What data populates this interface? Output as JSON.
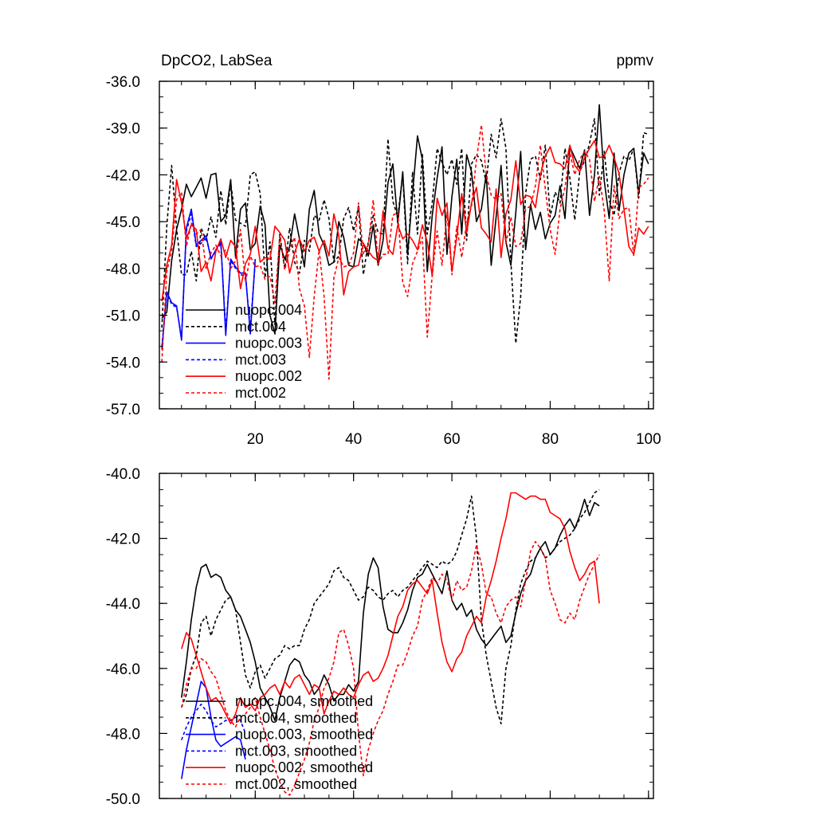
{
  "chart_data": [
    {
      "type": "line",
      "title": "DpCO2, LabSea",
      "units": "ppmv",
      "xlim": [
        0.5,
        101
      ],
      "ylim": [
        -57.0,
        -36.0
      ],
      "x_ticks": [
        "20",
        "40",
        "60",
        "80",
        "100"
      ],
      "y_ticks": [
        "-36.0",
        "-39.0",
        "-42.0",
        "-45.0",
        "-48.0",
        "-51.0",
        "-54.0",
        "-57.0"
      ],
      "legend_position": "bottom-left",
      "series": [
        {
          "name": "nuopc.004",
          "color": "#000000",
          "dash": "solid",
          "x_start": 1,
          "values": [
            -51.2,
            -50.8,
            -47.5,
            -45.5,
            -44.2,
            -42.6,
            -43.4,
            -42.8,
            -42.2,
            -43.5,
            -42.0,
            -41.9,
            -45.0,
            -44.6,
            -42.3,
            -47.3,
            -44.2,
            -43.8,
            -46.8,
            -46.4,
            -44.0,
            -45.2,
            -51.0,
            -52.2,
            -46.5,
            -47.4,
            -46.6,
            -44.5,
            -46.1,
            -47.9,
            -44.2,
            -43.0,
            -45.8,
            -46.5,
            -47.8,
            -47.6,
            -45.0,
            -46.0,
            -47.8,
            -47.9,
            -46.1,
            -46.4,
            -47.2,
            -45.2,
            -47.8,
            -46.2,
            -42.5,
            -41.3,
            -45.1,
            -41.8,
            -47.1,
            -43.2,
            -39.5,
            -41.0,
            -48.2,
            -44.6,
            -42.2,
            -40.2,
            -47.1,
            -43.4,
            -41.0,
            -45.8,
            -40.7,
            -41.8,
            -45.0,
            -44.2,
            -41.9,
            -47.8,
            -44.7,
            -41.4,
            -46.3,
            -47.8,
            -44.4,
            -40.5,
            -46.8,
            -43.9,
            -45.5,
            -44.4,
            -46.1,
            -45.1,
            -44.6,
            -42.7,
            -44.8,
            -40.2,
            -40.9,
            -41.6,
            -40.4,
            -44.6,
            -42.0,
            -37.5,
            -42.4,
            -44.8,
            -40.6,
            -44.3,
            -42.0,
            -40.6,
            -40.3,
            -43.2,
            -40.6,
            -41.3
          ]
        },
        {
          "name": "mct.004",
          "color": "#000000",
          "dash": "dashed",
          "x_start": 1,
          "values": [
            -51.8,
            -45.3,
            -41.4,
            -45.4,
            -48.4,
            -48.4,
            -46.9,
            -48.8,
            -45.4,
            -46.2,
            -44.7,
            -46.0,
            -43.0,
            -45.2,
            -42.5,
            -44.9,
            -45.1,
            -45.3,
            -42.0,
            -41.8,
            -43.2,
            -48.6,
            -46.3,
            -51.6,
            -45.8,
            -48.0,
            -45.4,
            -47.6,
            -48.3,
            -46.2,
            -46.9,
            -44.6,
            -44.9,
            -43.6,
            -44.8,
            -47.6,
            -47.2,
            -44.8,
            -44.1,
            -45.6,
            -44.0,
            -48.4,
            -46.3,
            -44.6,
            -45.7,
            -45.8,
            -39.7,
            -43.7,
            -44.7,
            -42.0,
            -47.7,
            -41.8,
            -45.8,
            -40.6,
            -45.8,
            -43.8,
            -40.3,
            -41.2,
            -42.0,
            -41.0,
            -42.6,
            -40.3,
            -46.2,
            -41.3,
            -40.7,
            -41.1,
            -42.5,
            -39.4,
            -40.9,
            -38.4,
            -40.3,
            -47.6,
            -52.8,
            -49.8,
            -43.2,
            -41.0,
            -40.8,
            -42.3,
            -40.1,
            -44.7,
            -43.1,
            -43.8,
            -40.3,
            -42.2,
            -44.9,
            -41.8,
            -41.1,
            -40.0,
            -38.4,
            -43.3,
            -40.5,
            -43.6,
            -44.6,
            -41.9,
            -40.8,
            -41.1,
            -40.3,
            -43.5,
            -39.3,
            -39.4
          ]
        },
        {
          "name": "nuopc.003",
          "color": "#0000ff",
          "dash": "solid",
          "x_start": 1,
          "values": [
            -53.2,
            -49.5,
            -50.2,
            -50.4,
            -52.6,
            -45.4,
            -44.2,
            -46.5,
            -46.2,
            -45.9,
            -47.4,
            -46.8,
            -46.3,
            -52.3,
            -47.4,
            -47.9,
            -48.3,
            -48.3,
            -52.2,
            -47.4
          ]
        },
        {
          "name": "mct.003",
          "color": "#0000ff",
          "dash": "dashed",
          "x_start": 1,
          "values": [
            -53.0,
            -49.6,
            -50.3,
            -50.5,
            -52.4,
            -45.6,
            -44.5,
            -46.6,
            -46.4,
            -46.0,
            -47.3,
            -46.9,
            -46.4,
            -52.0,
            -47.5,
            -48.0,
            -48.4,
            -48.5,
            -51.8,
            -47.6
          ]
        },
        {
          "name": "nuopc.002",
          "color": "#ff0000",
          "dash": "solid",
          "x_start": 1,
          "values": [
            -50.1,
            -47.8,
            -46.5,
            -42.3,
            -43.8,
            -46.1,
            -45.2,
            -45.5,
            -48.2,
            -47.6,
            -48.8,
            -46.9,
            -46.1,
            -47.3,
            -46.2,
            -46.6,
            -49.3,
            -47.7,
            -47.1,
            -45.3,
            -47.6,
            -47.3,
            -47.4,
            -45.3,
            -45.7,
            -46.2,
            -48.3,
            -47.0,
            -46.1,
            -46.9,
            -46.2,
            -46.0,
            -46.9,
            -46.2,
            -47.2,
            -44.5,
            -45.9,
            -49.7,
            -48.2,
            -47.9,
            -47.8,
            -46.4,
            -46.9,
            -47.3,
            -47.5,
            -44.3,
            -46.7,
            -47.1,
            -45.2,
            -46.1,
            -45.8,
            -46.2,
            -46.8,
            -45.2,
            -46.3,
            -48.5,
            -43.5,
            -44.6,
            -43.8,
            -48.2,
            -46.0,
            -43.2,
            -45.7,
            -43.8,
            -42.8,
            -45.4,
            -45.8,
            -46.3,
            -42.9,
            -47.3,
            -44.5,
            -43.6,
            -41.1,
            -43.9,
            -43.3,
            -43.4,
            -44.1,
            -42.0,
            -40.8,
            -40.2,
            -41.2,
            -41.3,
            -41.6,
            -40.1,
            -41.4,
            -41.8,
            -40.9,
            -40.3,
            -39.8,
            -40.9,
            -40.8,
            -40.1,
            -40.9,
            -41.9,
            -44.2,
            -46.6,
            -47.1,
            -45.4,
            -45.8,
            -45.3
          ]
        },
        {
          "name": "mct.002",
          "color": "#ff0000",
          "dash": "dashed",
          "x_start": 1,
          "values": [
            -54.0,
            -48.2,
            -46.9,
            -43.6,
            -43.1,
            -46.6,
            -45.1,
            -45.8,
            -45.5,
            -48.0,
            -47.0,
            -46.5,
            -47.2,
            -46.8,
            -48.0,
            -47.5,
            -45.5,
            -48.9,
            -47.2,
            -47.9,
            -47.8,
            -48.7,
            -48.5,
            -50.2,
            -45.9,
            -48.1,
            -46.8,
            -46.0,
            -49.3,
            -50.4,
            -53.7,
            -49.8,
            -46.8,
            -49.8,
            -55.1,
            -48.6,
            -47.3,
            -47.9,
            -47.8,
            -47.0,
            -43.8,
            -47.1,
            -46.5,
            -43.6,
            -47.7,
            -47.1,
            -47.1,
            -44.6,
            -44.4,
            -48.9,
            -49.8,
            -47.7,
            -46.9,
            -46.0,
            -52.4,
            -48.4,
            -45.6,
            -47.8,
            -44.4,
            -48.4,
            -45.3,
            -47.3,
            -45.1,
            -44.0,
            -41.0,
            -38.8,
            -42.0,
            -43.3,
            -43.6,
            -43.2,
            -46.4,
            -44.7,
            -46.6,
            -46.4,
            -44.2,
            -44.0,
            -42.7,
            -40.1,
            -42.9,
            -45.5,
            -47.1,
            -44.2,
            -42.8,
            -40.6,
            -42.0,
            -41.0,
            -40.5,
            -41.0,
            -43.7,
            -42.1,
            -44.3,
            -48.8,
            -42.7,
            -44.8,
            -44.2,
            -44.1,
            -47.2,
            -42.8,
            -42.6,
            -42.2
          ]
        }
      ]
    },
    {
      "type": "line",
      "title": "",
      "units": "",
      "xlim": [
        0.5,
        101
      ],
      "ylim": [
        -50.0,
        -40.0
      ],
      "x_ticks": [],
      "y_ticks": [
        "-40.0",
        "-42.0",
        "-44.0",
        "-46.0",
        "-48.0",
        "-50.0"
      ],
      "legend_position": "bottom-left",
      "series": [
        {
          "name": "nuopc.004, smoothed",
          "color": "#000000",
          "dash": "solid",
          "x_start": 5,
          "values": [
            -46.9,
            -45.8,
            -44.5,
            -43.5,
            -42.9,
            -42.8,
            -43.2,
            -43.1,
            -43.2,
            -43.6,
            -43.8,
            -44.2,
            -44.4,
            -44.8,
            -45.2,
            -45.8,
            -46.6,
            -46.9,
            -47.2,
            -47.6,
            -46.9,
            -46.4,
            -45.9,
            -45.7,
            -45.8,
            -46.2,
            -46.4,
            -46.8,
            -46.6,
            -46.2,
            -46.5,
            -47.0,
            -46.8,
            -46.8,
            -46.5,
            -46.7,
            -46.4,
            -44.3,
            -43.1,
            -42.6,
            -42.9,
            -44.1,
            -44.8,
            -44.9,
            -44.9,
            -44.6,
            -44.2,
            -43.6,
            -43.2,
            -43.1,
            -42.8,
            -43.1,
            -43.4,
            -43.7,
            -43.0,
            -43.9,
            -44.2,
            -44.0,
            -44.4,
            -44.2,
            -44.8,
            -45.1,
            -45.3,
            -45.1,
            -44.9,
            -44.7,
            -45.2,
            -45.0,
            -44.3,
            -43.7,
            -43.3,
            -43.1,
            -42.6,
            -42.3,
            -42.1,
            -42.5,
            -42.3,
            -41.9,
            -41.6,
            -41.4,
            -41.7,
            -41.3,
            -40.8,
            -41.3,
            -40.9,
            -41.0
          ]
        },
        {
          "name": "mct.004, smoothed",
          "color": "#000000",
          "dash": "dashed",
          "x_start": 5,
          "values": [
            -47.2,
            -46.8,
            -46.0,
            -45.6,
            -44.6,
            -44.4,
            -45.0,
            -44.5,
            -44.2,
            -43.9,
            -43.8,
            -44.2,
            -45.2,
            -46.2,
            -46.6,
            -46.1,
            -45.9,
            -46.3,
            -46.0,
            -45.7,
            -45.6,
            -45.3,
            -45.4,
            -45.3,
            -45.3,
            -44.8,
            -44.5,
            -44.0,
            -43.8,
            -43.6,
            -43.4,
            -43.0,
            -42.9,
            -43.2,
            -43.3,
            -43.6,
            -43.9,
            -43.8,
            -43.5,
            -43.6,
            -43.8,
            -43.9,
            -43.7,
            -43.6,
            -43.8,
            -43.6,
            -43.5,
            -43.3,
            -43.1,
            -42.9,
            -42.7,
            -42.8,
            -42.9,
            -42.7,
            -42.8,
            -42.7,
            -42.4,
            -41.9,
            -41.4,
            -40.7,
            -42.0,
            -44.5,
            -45.6,
            -46.4,
            -47.2,
            -47.7,
            -46.0,
            -45.3,
            -44.2,
            -43.4,
            -43.0,
            -42.7,
            -42.6,
            -42.3,
            -42.6,
            -42.5,
            -42.3,
            -42.1,
            -42.0,
            -41.9,
            -41.7,
            -41.4,
            -41.2,
            -40.9,
            -40.6,
            -40.5
          ]
        },
        {
          "name": "nuopc.003, smoothed",
          "color": "#0000ff",
          "dash": "solid",
          "x_start": 5,
          "values": [
            -49.4,
            -48.5,
            -47.8,
            -47.1,
            -46.4,
            -46.6,
            -47.5,
            -48.2,
            -48.4,
            -48.3,
            -48.2,
            -48.1,
            -48.2,
            -48.8
          ]
        },
        {
          "name": "mct.003, smoothed",
          "color": "#0000ff",
          "dash": "dashed",
          "x_start": 5,
          "values": [
            -48.2,
            -47.8,
            -47.5,
            -47.3,
            -47.1,
            -47.3,
            -47.6,
            -47.8,
            -47.7,
            -47.6,
            -47.6,
            -47.5,
            -47.6,
            -48.0
          ]
        },
        {
          "name": "nuopc.002, smoothed",
          "color": "#ff0000",
          "dash": "solid",
          "x_start": 5,
          "values": [
            -45.4,
            -44.9,
            -45.1,
            -45.6,
            -46.1,
            -46.6,
            -47.0,
            -46.9,
            -47.1,
            -47.4,
            -47.7,
            -47.4,
            -46.9,
            -47.2,
            -47.1,
            -47.3,
            -46.9,
            -46.8,
            -46.6,
            -46.5,
            -46.8,
            -46.4,
            -46.6,
            -46.3,
            -46.2,
            -46.5,
            -46.8,
            -46.5,
            -46.6,
            -47.4,
            -47.0,
            -46.7,
            -46.8,
            -46.6,
            -46.8,
            -46.9,
            -46.5,
            -46.2,
            -46.1,
            -46.4,
            -46.3,
            -46.0,
            -45.6,
            -45.0,
            -44.4,
            -44.1,
            -43.6,
            -43.4,
            -43.3,
            -43.5,
            -43.7,
            -43.3,
            -44.3,
            -45.2,
            -45.8,
            -46.1,
            -45.7,
            -45.5,
            -45.0,
            -44.7,
            -44.4,
            -44.6,
            -43.8,
            -43.3,
            -42.7,
            -42.0,
            -41.4,
            -40.6,
            -40.6,
            -40.7,
            -40.8,
            -40.7,
            -40.7,
            -40.8,
            -40.8,
            -41.2,
            -41.3,
            -41.4,
            -41.7,
            -42.4,
            -42.9,
            -43.3,
            -43.1,
            -42.8,
            -42.7,
            -44.0
          ]
        },
        {
          "name": "mct.002, smoothed",
          "color": "#ff0000",
          "dash": "dashed",
          "x_start": 5,
          "values": [
            -47.2,
            -46.5,
            -46.0,
            -46.0,
            -45.7,
            -45.8,
            -46.1,
            -46.3,
            -46.8,
            -47.3,
            -47.6,
            -47.8,
            -47.5,
            -47.4,
            -47.2,
            -46.9,
            -47.5,
            -48.0,
            -48.5,
            -49.1,
            -49.5,
            -49.8,
            -49.9,
            -49.6,
            -49.2,
            -48.8,
            -48.3,
            -47.6,
            -47.2,
            -46.6,
            -46.3,
            -45.8,
            -44.9,
            -44.8,
            -45.3,
            -46.0,
            -48.0,
            -49.3,
            -48.5,
            -48.0,
            -47.6,
            -47.3,
            -46.8,
            -46.4,
            -45.9,
            -45.9,
            -45.5,
            -45.0,
            -44.7,
            -43.9,
            -43.6,
            -43.2,
            -43.4,
            -43.1,
            -43.3,
            -43.9,
            -43.3,
            -43.6,
            -43.5,
            -43.0,
            -42.2,
            -42.8,
            -43.7,
            -43.8,
            -44.3,
            -44.6,
            -44.1,
            -43.9,
            -43.8,
            -44.1,
            -43.3,
            -42.4,
            -42.1,
            -42.3,
            -42.6,
            -43.6,
            -44.0,
            -44.5,
            -44.6,
            -44.3,
            -44.5,
            -43.9,
            -43.5,
            -43.1,
            -42.8,
            -42.5
          ]
        }
      ]
    }
  ]
}
